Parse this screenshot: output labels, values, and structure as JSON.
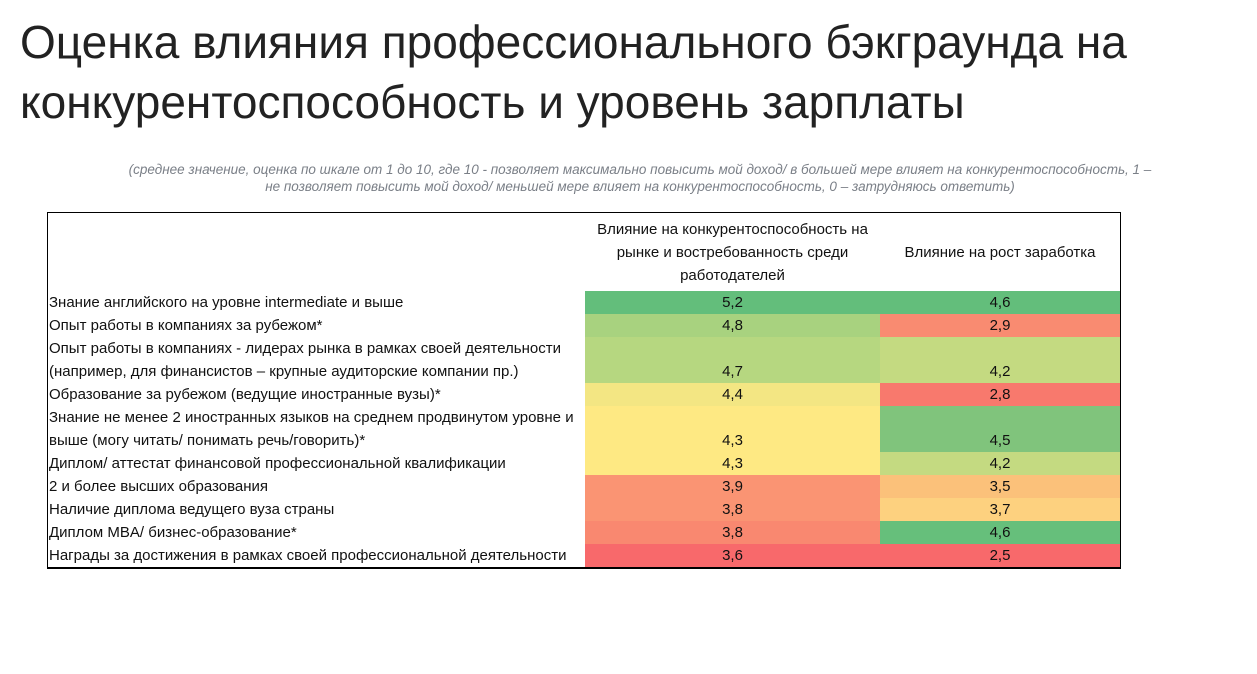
{
  "title_lines": [
    "Оценка влияния профессионального бэкграунда на",
    "конкурентоспособность и уровень зарплаты"
  ],
  "subtitle_lines": [
    "(среднее значение, оценка по шкале от 1 до 10, где 10 - позволяет максимально повысить мой доход/ в большей мере влияет на конкурентоспособность, 1 –",
    "не позволяет повысить мой доход/ меньшей мере влияет на конкурентоспособность,  0 – затрудняюсь ответить)"
  ],
  "chart_data": {
    "type": "heatmap",
    "columns": [
      "",
      "Влияние на конкурентоспособность на рынке и востребованность среди работодателей",
      "Влияние на рост заработка"
    ],
    "rows": [
      {
        "label": "Знание английского на уровне intermediate и выше",
        "values": [
          "5,2",
          "4,6"
        ],
        "colors": [
          "#63BE7B",
          "#63BE7B"
        ]
      },
      {
        "label": "Опыт работы в компаниях за рубежом*",
        "values": [
          "4,8",
          "2,9"
        ],
        "colors": [
          "#A8D27F",
          "#F98B71"
        ]
      },
      {
        "label": "Опыт работы в компаниях - лидерах рынка в рамках своей деятельности (например, для финансистов – крупные аудиторские компании  пр.)",
        "values": [
          "4,7",
          "4,2"
        ],
        "colors": [
          "#B6D780",
          "#C4DA81"
        ]
      },
      {
        "label": "Образование за рубежом (ведущие иностранные вузы)*",
        "values": [
          "4,4",
          "2,8"
        ],
        "colors": [
          "#F3E683",
          "#F8796D"
        ]
      },
      {
        "label": "Знание не менее 2 иностранных языков на среднем продвинутом уровне и выше (могу читать/ понимать речь/говорить)*",
        "values": [
          "4,3",
          "4,5"
        ],
        "colors": [
          "#FEE983",
          "#80C47C"
        ]
      },
      {
        "label": "Диплом/ аттестат финансовой профессиональной квалификации",
        "values": [
          "4,3",
          "4,2"
        ],
        "colors": [
          "#FEE983",
          "#C4DA81"
        ]
      },
      {
        "label": "2 и более высших образования",
        "values": [
          "3,9",
          "3,5"
        ],
        "colors": [
          "#FA9473",
          "#FBC17A"
        ]
      },
      {
        "label": "Наличие диплома ведущего вуза страны",
        "values": [
          "3,8",
          "3,7"
        ],
        "colors": [
          "#FA9473",
          "#FDD17F"
        ]
      },
      {
        "label": "Диплом MBA/ бизнес-образование*",
        "values": [
          "3,8",
          "4,6"
        ],
        "colors": [
          "#F98870",
          "#66BF7B"
        ]
      },
      {
        "label": "Награды за достижения в рамках своей профессиональной деятельности",
        "values": [
          "3,6",
          "2,5"
        ],
        "colors": [
          "#F8696B",
          "#F8696B"
        ]
      }
    ]
  }
}
